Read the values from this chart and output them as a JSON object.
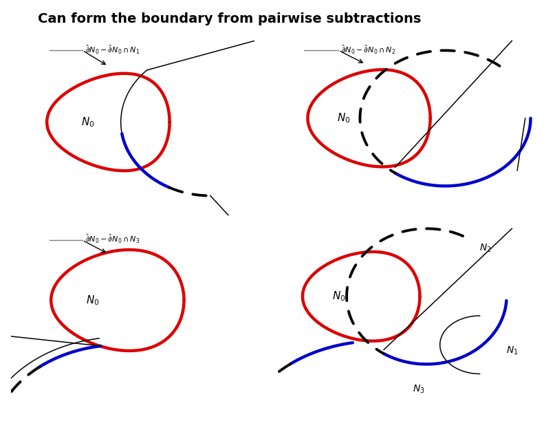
{
  "title": "Can form the boundary from pairwise subtractions",
  "title_fontsize": 14,
  "title_fontweight": "bold",
  "bg_color": "#ffffff",
  "red_color": "#dd0000",
  "blue_color": "#0000cc",
  "black_color": "#000000",
  "red_lw": 3.2,
  "blue_lw": 3.2,
  "thin_lw": 1.1,
  "dashed_lw": 2.8
}
